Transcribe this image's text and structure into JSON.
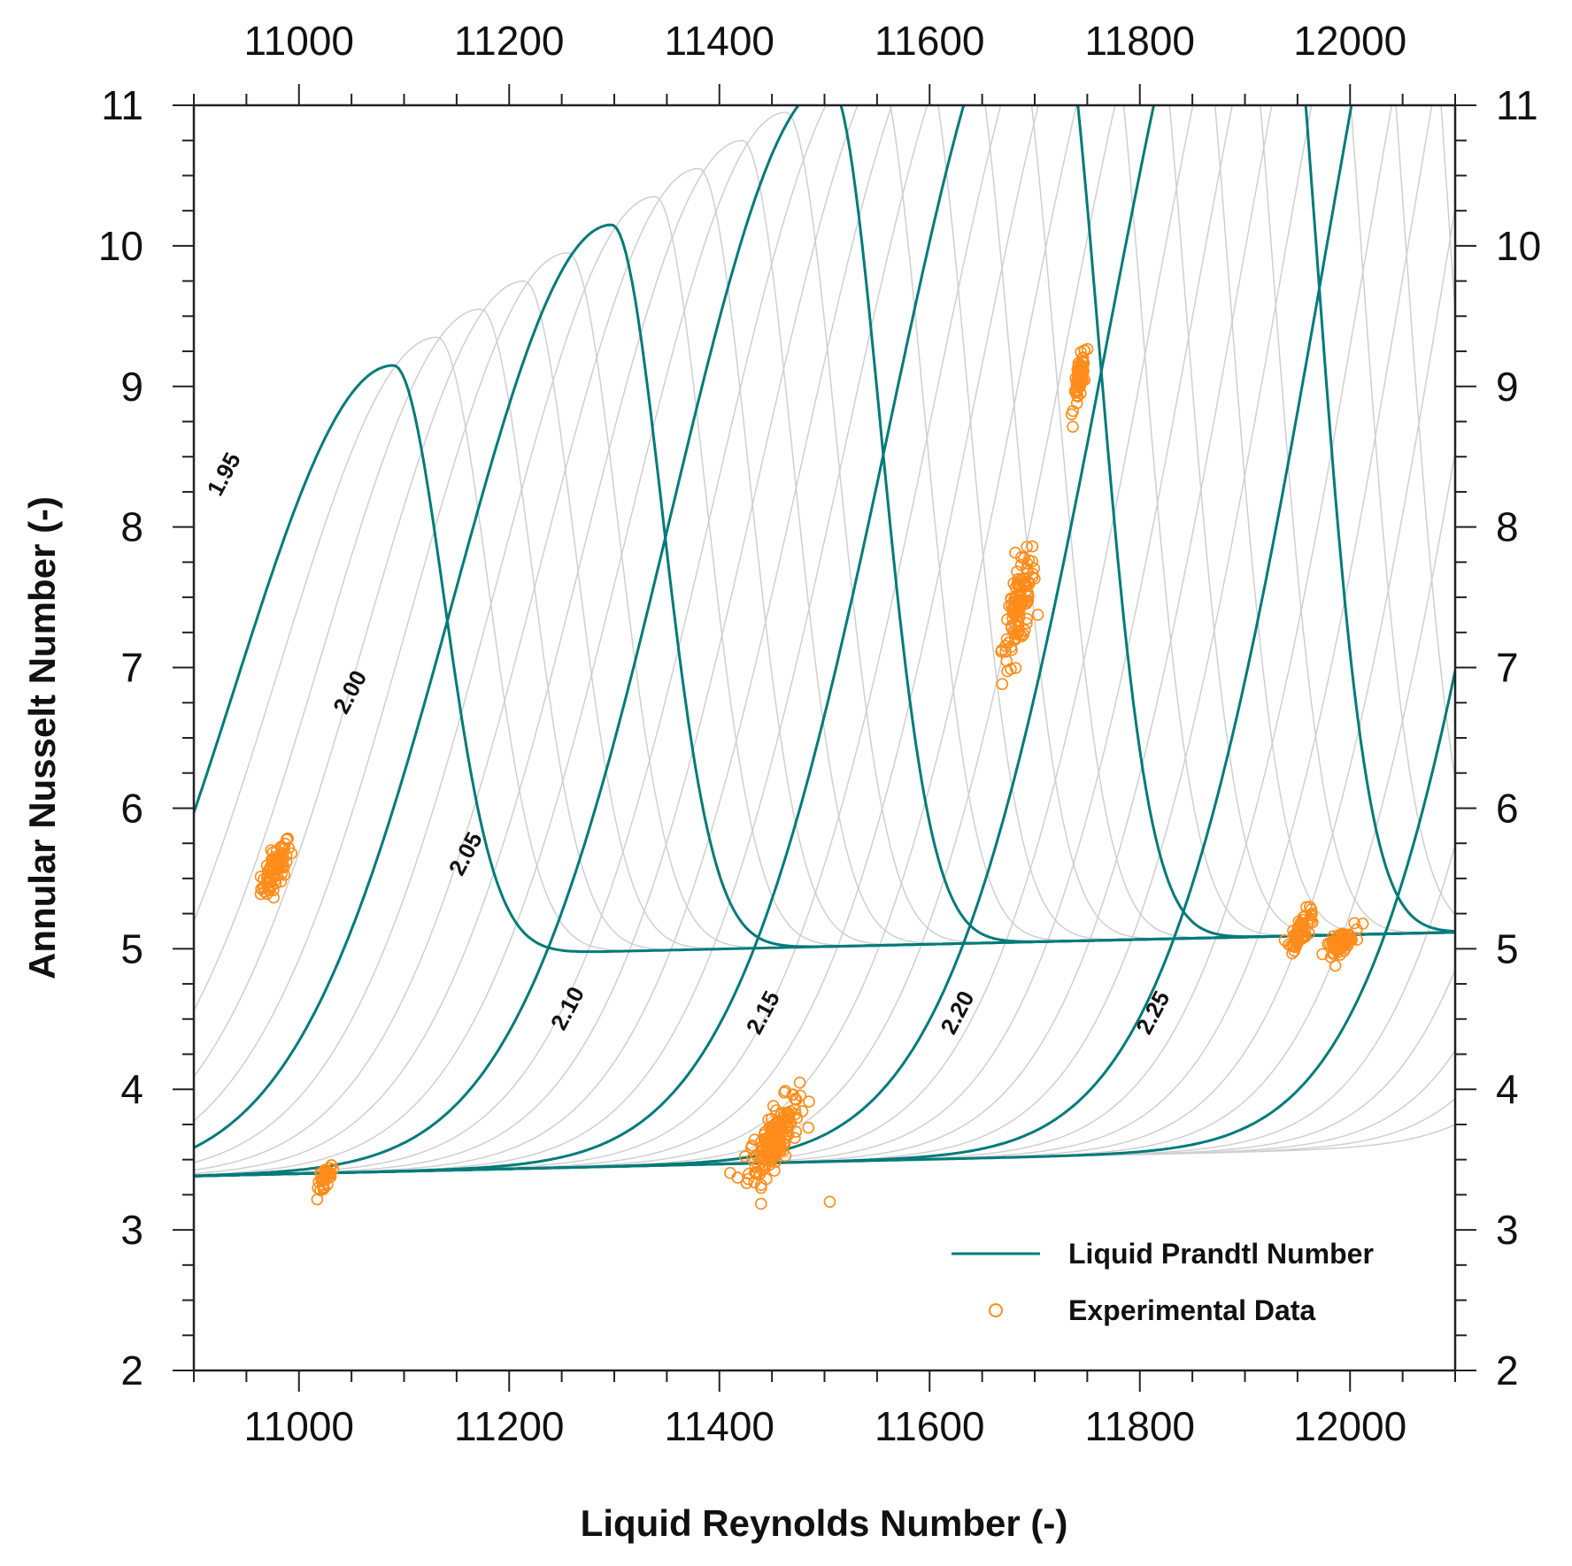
{
  "chart_data": {
    "type": "line",
    "xlabel": "Liquid Reynolds Number (-)",
    "ylabel": "Annular Nusselt Number (-)",
    "xlim": [
      10900,
      12100
    ],
    "ylim": [
      2,
      11
    ],
    "x_ticks": [
      11000,
      11200,
      11400,
      11600,
      11800,
      12000
    ],
    "x_tick_labels": [
      "11000",
      "11200",
      "11400",
      "11600",
      "11800",
      "12000"
    ],
    "y_ticks": [
      2,
      3,
      4,
      5,
      6,
      7,
      8,
      9,
      10,
      11
    ],
    "y_tick_labels": [
      "2",
      "3",
      "4",
      "5",
      "6",
      "7",
      "8",
      "9",
      "10",
      "11"
    ],
    "grid": false,
    "legend_position": "bottom-right",
    "legend": [
      "Liquid Prandtl Number",
      "Experimental Data"
    ],
    "highlight_prandtl": [
      1.95,
      2.0,
      2.05,
      2.1,
      2.15,
      2.2,
      2.25
    ],
    "highlight_labels": [
      "1.95",
      "2.00",
      "2.05",
      "2.10",
      "2.15",
      "2.20",
      "2.25"
    ],
    "label_points": [
      {
        "x": 10935,
        "y": 8.35
      },
      {
        "x": 11055,
        "y": 6.8
      },
      {
        "x": 11165,
        "y": 5.65
      },
      {
        "x": 11262,
        "y": 4.55
      },
      {
        "x": 11448,
        "y": 4.52
      },
      {
        "x": 11633,
        "y": 4.52
      },
      {
        "x": 11819,
        "y": 4.52
      }
    ],
    "family": {
      "prandtl_start": 1.95,
      "prandtl_step": 0.01,
      "count": 36,
      "peak_x_start": 11090,
      "peak_x_step": 41.5,
      "peak_y_start": 9.15,
      "peak_y_step": 0.2,
      "curves_per_label": 5,
      "low_plateau": 3.4,
      "high_plateau": 4.93,
      "plateau_slope_per_1000": 0.17,
      "rise_width": 150,
      "fall_width": 48
    },
    "series": [
      {
        "name": "Experimental Data",
        "type": "scatter",
        "clusters": [
          {
            "x": 10978,
            "y": 5.57,
            "sx": 7,
            "sy": 0.1,
            "n": 80
          },
          {
            "x": 11025,
            "y": 3.36,
            "sx": 4,
            "sy": 0.06,
            "n": 35
          },
          {
            "x": 11452,
            "y": 3.65,
            "sx": 12,
            "sy": 0.15,
            "n": 170
          },
          {
            "x": 11685,
            "y": 7.42,
            "sx": 8,
            "sy": 0.2,
            "n": 110
          },
          {
            "x": 11743,
            "y": 9.05,
            "sx": 3,
            "sy": 0.1,
            "n": 60
          },
          {
            "x": 11955,
            "y": 5.15,
            "sx": 6,
            "sy": 0.07,
            "n": 55
          },
          {
            "x": 11990,
            "y": 5.04,
            "sx": 7,
            "sy": 0.05,
            "n": 70
          }
        ],
        "outliers": [
          {
            "x": 11505,
            "y": 3.2
          }
        ]
      }
    ]
  }
}
